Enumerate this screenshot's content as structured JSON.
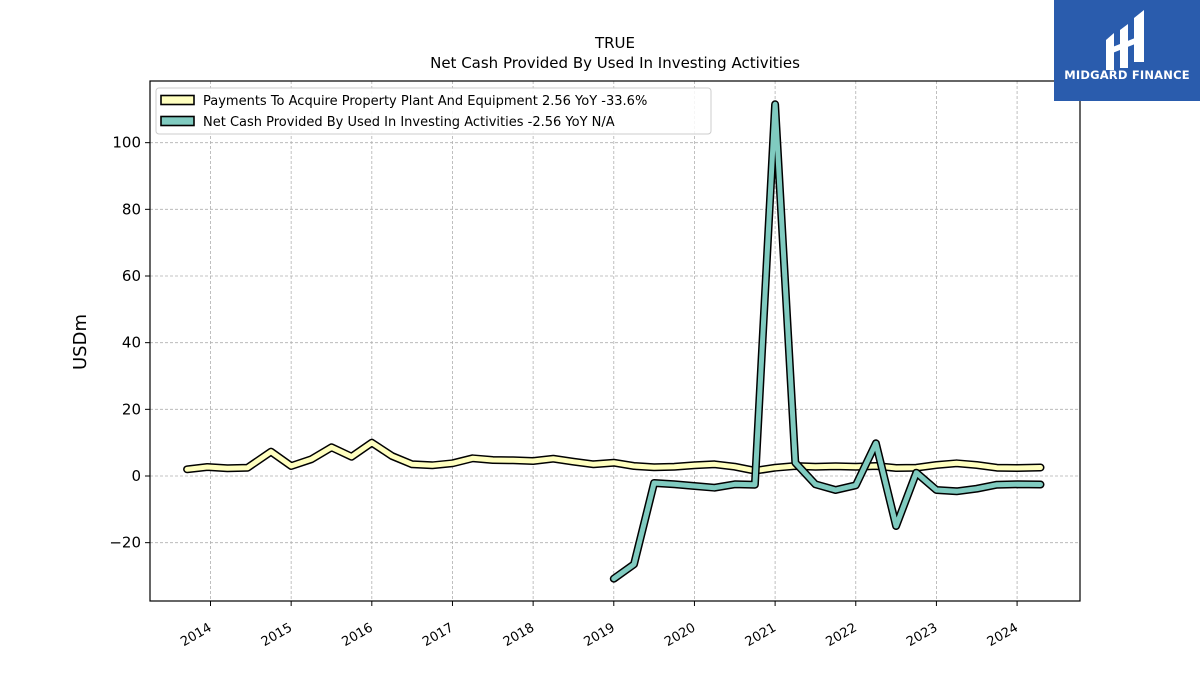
{
  "logo": {
    "text": "MIDGARD FINANCE",
    "background": "#2a5cad"
  },
  "chart_data": {
    "type": "line",
    "title": "TRUE",
    "subtitle": "Net Cash Provided By Used In Investing Activities",
    "ylabel": "USDm",
    "xlabel": "",
    "xlim": [
      2013.25,
      2024.78
    ],
    "ylim": [
      -37.5,
      118.5
    ],
    "yticks": [
      -20,
      0,
      20,
      40,
      60,
      80,
      100
    ],
    "ytick_labels": [
      "−20",
      "0",
      "20",
      "40",
      "60",
      "80",
      "100"
    ],
    "xticks": [
      2014,
      2015,
      2016,
      2017,
      2018,
      2019,
      2020,
      2021,
      2022,
      2023,
      2024
    ],
    "xtick_labels": [
      "2014",
      "2015",
      "2016",
      "2017",
      "2018",
      "2019",
      "2020",
      "2021",
      "2022",
      "2023",
      "2024"
    ],
    "grid": true,
    "legend_position": "top-left",
    "series": [
      {
        "name": "Payments To Acquire Property Plant And Equipment",
        "legend_label": "Payments To Acquire Property Plant And Equipment  2.56 YoY -33.6%",
        "color": "#ffffbf",
        "x": [
          2013.71,
          2013.96,
          2014.21,
          2014.46,
          2014.75,
          2015.0,
          2015.25,
          2015.5,
          2015.75,
          2016.0,
          2016.25,
          2016.5,
          2016.75,
          2017.0,
          2017.25,
          2017.5,
          2017.75,
          2018.0,
          2018.25,
          2018.5,
          2018.75,
          2019.0,
          2019.25,
          2019.5,
          2019.75,
          2020.0,
          2020.25,
          2020.5,
          2020.75,
          2021.0,
          2021.25,
          2021.5,
          2021.75,
          2022.0,
          2022.25,
          2022.5,
          2022.75,
          2023.0,
          2023.25,
          2023.5,
          2023.75,
          2024.0,
          2024.29
        ],
        "y": [
          2.0,
          2.7,
          2.3,
          2.5,
          7.3,
          3.0,
          5.0,
          8.6,
          5.8,
          10.0,
          6.0,
          3.5,
          3.2,
          3.8,
          5.3,
          4.8,
          4.7,
          4.5,
          5.2,
          4.3,
          3.5,
          4.0,
          3.0,
          2.6,
          2.8,
          3.2,
          3.5,
          2.8,
          1.6,
          2.5,
          3.0,
          2.8,
          2.9,
          2.8,
          3.0,
          2.4,
          2.5,
          3.3,
          3.8,
          3.3,
          2.5,
          2.4,
          2.56
        ]
      },
      {
        "name": "Net Cash Provided By Used In Investing Activities",
        "legend_label": "Net Cash Provided By Used In Investing Activities  -2.56 YoY N/A",
        "color": "#80cbc0",
        "x": [
          2019.0,
          2019.25,
          2019.5,
          2019.75,
          2020.0,
          2020.25,
          2020.5,
          2020.75,
          2021.0,
          2021.25,
          2021.5,
          2021.75,
          2022.0,
          2022.25,
          2022.5,
          2022.75,
          2023.0,
          2023.25,
          2023.5,
          2023.75,
          2024.0,
          2024.29
        ],
        "y": [
          -30.8,
          -26.5,
          -2.1,
          -2.5,
          -3.0,
          -3.5,
          -2.5,
          -2.6,
          111.5,
          4.0,
          -2.5,
          -4.2,
          -2.8,
          9.8,
          -15.0,
          1.0,
          -4.2,
          -4.6,
          -3.8,
          -2.6,
          -2.5,
          -2.56
        ]
      }
    ]
  }
}
